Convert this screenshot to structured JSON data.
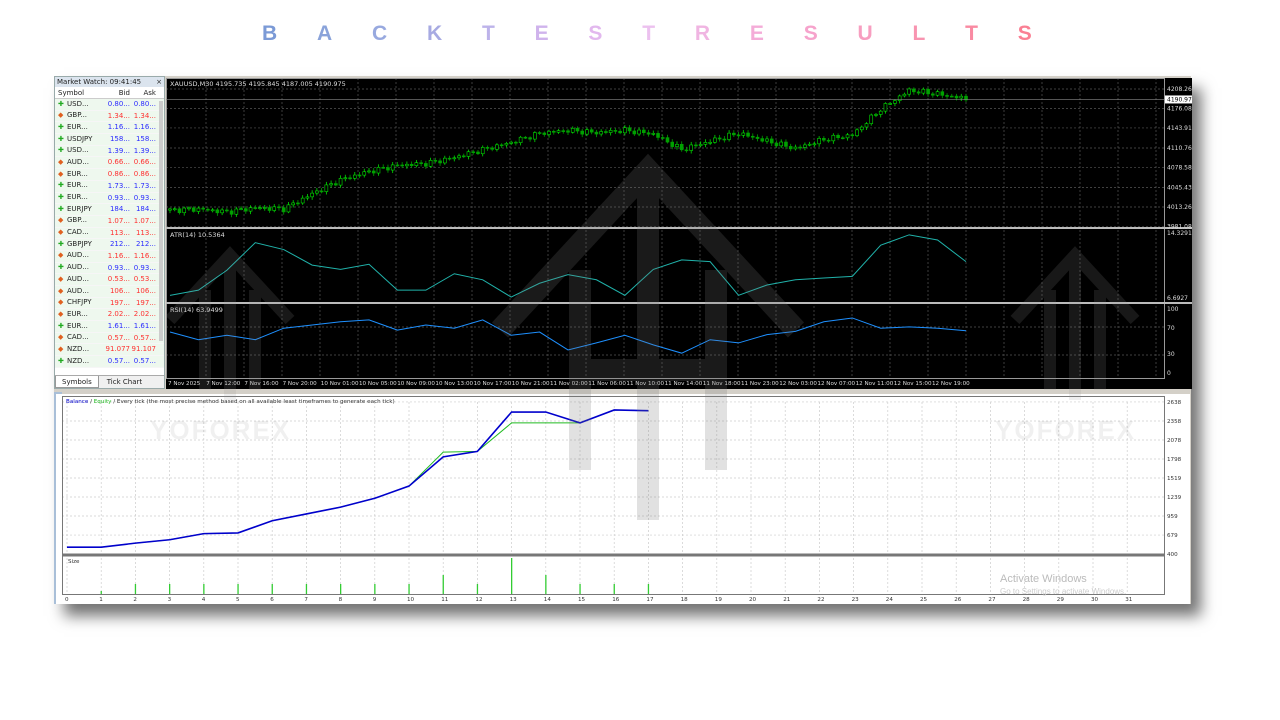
{
  "title": {
    "letters": [
      "B",
      "A",
      "C",
      "K",
      "T",
      "E",
      "S",
      "T",
      "R",
      "E",
      "S",
      "U",
      "L",
      "T",
      "S"
    ],
    "colors": [
      "#7b9ad6",
      "#8aa3da",
      "#98a9df",
      "#a7aae2",
      "#bdb3ea",
      "#cfb3ec",
      "#e2b8ee",
      "#ecc1ef",
      "#f0b5e2",
      "#f4acd8",
      "#f6a3cc",
      "#f79ec0",
      "#f894b0",
      "#f98aa2",
      "#fa8094"
    ]
  },
  "market_watch": {
    "title": "Market Watch: 09:41:45",
    "close": "×",
    "columns": [
      "Symbol",
      "Bid",
      "Ask"
    ],
    "rows": [
      {
        "symbol": "USD...",
        "bid": "0.80...",
        "ask": "0.80...",
        "dir": "up"
      },
      {
        "symbol": "GBP...",
        "bid": "1.34...",
        "ask": "1.34...",
        "dir": "down"
      },
      {
        "symbol": "EUR...",
        "bid": "1.16...",
        "ask": "1.16...",
        "dir": "up"
      },
      {
        "symbol": "USDJPY",
        "bid": "158...",
        "ask": "158...",
        "dir": "up"
      },
      {
        "symbol": "USD...",
        "bid": "1.39...",
        "ask": "1.39...",
        "dir": "up"
      },
      {
        "symbol": "AUD...",
        "bid": "0.66...",
        "ask": "0.66...",
        "dir": "down"
      },
      {
        "symbol": "EUR...",
        "bid": "0.86...",
        "ask": "0.86...",
        "dir": "down"
      },
      {
        "symbol": "EUR...",
        "bid": "1.73...",
        "ask": "1.73...",
        "dir": "up"
      },
      {
        "symbol": "EUR...",
        "bid": "0.93...",
        "ask": "0.93...",
        "dir": "up"
      },
      {
        "symbol": "EURJPY",
        "bid": "184...",
        "ask": "184...",
        "dir": "up"
      },
      {
        "symbol": "GBP...",
        "bid": "1.07...",
        "ask": "1.07...",
        "dir": "down"
      },
      {
        "symbol": "CAD...",
        "bid": "113...",
        "ask": "113...",
        "dir": "down"
      },
      {
        "symbol": "GBPJPY",
        "bid": "212...",
        "ask": "212...",
        "dir": "up"
      },
      {
        "symbol": "AUD...",
        "bid": "1.16...",
        "ask": "1.16...",
        "dir": "down"
      },
      {
        "symbol": "AUD...",
        "bid": "0.93...",
        "ask": "0.93...",
        "dir": "up"
      },
      {
        "symbol": "AUD...",
        "bid": "0.53...",
        "ask": "0.53...",
        "dir": "down"
      },
      {
        "symbol": "AUD...",
        "bid": "106...",
        "ask": "106...",
        "dir": "down"
      },
      {
        "symbol": "CHFJPY",
        "bid": "197...",
        "ask": "197...",
        "dir": "down"
      },
      {
        "symbol": "EUR...",
        "bid": "2.02...",
        "ask": "2.02...",
        "dir": "down"
      },
      {
        "symbol": "EUR...",
        "bid": "1.61...",
        "ask": "1.61...",
        "dir": "up"
      },
      {
        "symbol": "CAD...",
        "bid": "0.57...",
        "ask": "0.57...",
        "dir": "down"
      },
      {
        "symbol": "NZD...",
        "bid": "91.077",
        "ask": "91.107",
        "dir": "down"
      },
      {
        "symbol": "NZD...",
        "bid": "0.57...",
        "ask": "0.57...",
        "dir": "up"
      }
    ],
    "tabs": [
      "Symbols",
      "Tick Chart"
    ],
    "colors": {
      "up_text": "#2b2bff",
      "down_text": "#ff3030",
      "up_icon": "#22aa22",
      "down_icon": "#e06020"
    }
  },
  "chart_data": [
    {
      "type": "candlestick",
      "title": "XAUUSD,M30  4195.735 4195.845 4187.005 4190.975",
      "current_price": "4190.975",
      "price_ticks": [
        "4208.260",
        "4176.085",
        "4143.910",
        "4110.760",
        "4078.585",
        "4045.435",
        "4013.260",
        "3981.085"
      ],
      "price_tick_values": [
        4208.26,
        4176.085,
        4143.91,
        4110.76,
        4078.585,
        4045.435,
        4013.26,
        3981.085
      ],
      "closes": [
        4008,
        4010,
        4005,
        4012,
        4010,
        4035,
        4058,
        4072,
        4082,
        4085,
        4095,
        4108,
        4120,
        4135,
        4140,
        4136,
        4140,
        4134,
        4108,
        4122,
        4135,
        4122,
        4110,
        4125,
        4132,
        4175,
        4206,
        4200,
        4192
      ],
      "time_labels": [
        "7 Nov 2025",
        "7 Nov 12:00",
        "7 Nov 16:00",
        "7 Nov 20:00",
        "10 Nov 01:00",
        "10 Nov 05:00",
        "10 Nov 09:00",
        "10 Nov 13:00",
        "10 Nov 17:00",
        "10 Nov 21:00",
        "11 Nov 02:00",
        "11 Nov 06:00",
        "11 Nov 10:00",
        "11 Nov 14:00",
        "11 Nov 18:00",
        "11 Nov 23:00",
        "12 Nov 03:00",
        "12 Nov 07:00",
        "12 Nov 11:00",
        "12 Nov 15:00",
        "12 Nov 19:00"
      ],
      "colors": {
        "bull": "#00e000",
        "bear": "#00a000",
        "background": "#000000"
      }
    },
    {
      "type": "line",
      "title": "ATR(14) 10.5364",
      "ticks": [
        "14.3291",
        "6.6927"
      ],
      "ylim": [
        6.6927,
        14.3291
      ],
      "values": [
        7.0,
        7.6,
        9.9,
        13.1,
        12.3,
        10.5,
        10.0,
        10.6,
        7.6,
        7.6,
        9.5,
        8.8,
        6.8,
        8.4,
        9.4,
        8.8,
        7.0,
        10.0,
        11.1,
        10.9,
        7.0,
        8.2,
        8.8,
        9.0,
        9.2,
        12.8,
        14.0,
        13.4,
        10.9
      ],
      "color": "#20b2aa"
    },
    {
      "type": "line",
      "title": "RSI(14) 63.9499",
      "ticks": [
        "100",
        "70",
        "30",
        "0"
      ],
      "ylim": [
        0,
        100
      ],
      "values": [
        64,
        52,
        59,
        52,
        70,
        75,
        80,
        83,
        67,
        75,
        70,
        83,
        59,
        64,
        36,
        47,
        59,
        44,
        31,
        52,
        47,
        60,
        65,
        80,
        86,
        70,
        72,
        70,
        66
      ],
      "color": "#1e90ff"
    },
    {
      "type": "line",
      "title": "Balance / Equity / Every tick (the most precise method based on all available least timeframes to generate each tick)",
      "legend": [
        "Balance",
        "Equity"
      ],
      "x": [
        0,
        1,
        2,
        3,
        4,
        5,
        6,
        7,
        8,
        9,
        10,
        11,
        12,
        13,
        14,
        15,
        16,
        17
      ],
      "series": [
        {
          "name": "Balance",
          "values": [
            500,
            500,
            560,
            610,
            700,
            710,
            890,
            990,
            1090,
            1220,
            1400,
            1830,
            1910,
            2490,
            2490,
            2330,
            2520,
            2510
          ],
          "color": "#0000cc"
        },
        {
          "name": "Equity",
          "values": [
            500,
            500,
            560,
            610,
            700,
            710,
            890,
            990,
            1090,
            1220,
            1400,
            1900,
            1910,
            2330,
            2330,
            2330,
            2520,
            2510
          ],
          "color": "#22bb22"
        }
      ],
      "ylim": [
        400,
        2638
      ],
      "y_ticks": [
        "2638",
        "2358",
        "2078",
        "1798",
        "1519",
        "1239",
        "959",
        "679",
        "400"
      ],
      "x_ticks": [
        "0",
        "1",
        "2",
        "3",
        "4",
        "5",
        "6",
        "7",
        "8",
        "9",
        "10",
        "11",
        "12",
        "13",
        "14",
        "15",
        "16",
        "17",
        "18",
        "19",
        "20",
        "21",
        "22",
        "23",
        "24",
        "25",
        "26",
        "27",
        "28",
        "29",
        "30",
        "31"
      ],
      "grid": true
    },
    {
      "type": "bar",
      "title": "Size",
      "x": [
        1,
        2,
        3,
        4,
        5,
        6,
        7,
        8,
        9,
        10,
        11,
        12,
        13,
        14,
        15,
        16,
        17
      ],
      "values": [
        0.3,
        1,
        1,
        1,
        1,
        1,
        1,
        1,
        1,
        1,
        1.9,
        1,
        3.6,
        1.9,
        1,
        1,
        1
      ],
      "color": "#33cc33"
    }
  ],
  "watermark": {
    "brand": "YOFOREX"
  },
  "os_notice": {
    "line1": "Activate Windows",
    "line2": "Go to Settings to activate Windows."
  }
}
